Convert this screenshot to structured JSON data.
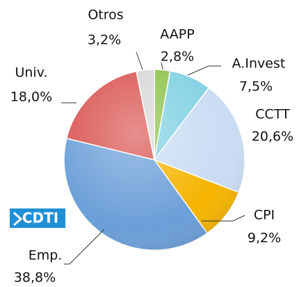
{
  "chart_data": {
    "type": "pie",
    "categories": [
      "AAPP",
      "A.Invest",
      "CCTT",
      "CPI",
      "Emp.",
      "Univ.",
      "Otros"
    ],
    "values": [
      2.8,
      7.5,
      20.6,
      9.2,
      38.8,
      18.0,
      3.2
    ],
    "value_labels": [
      "2,8%",
      "7,5%",
      "20,6%",
      "9,2%",
      "38,8%",
      "18,0%",
      "3,2%"
    ],
    "colors": [
      "#8cc24a",
      "#7fd0e2",
      "#c9dcf3",
      "#f5b400",
      "#6b9fd8",
      "#d9534f",
      "#d6d6d6"
    ]
  },
  "logo": "CDTI"
}
